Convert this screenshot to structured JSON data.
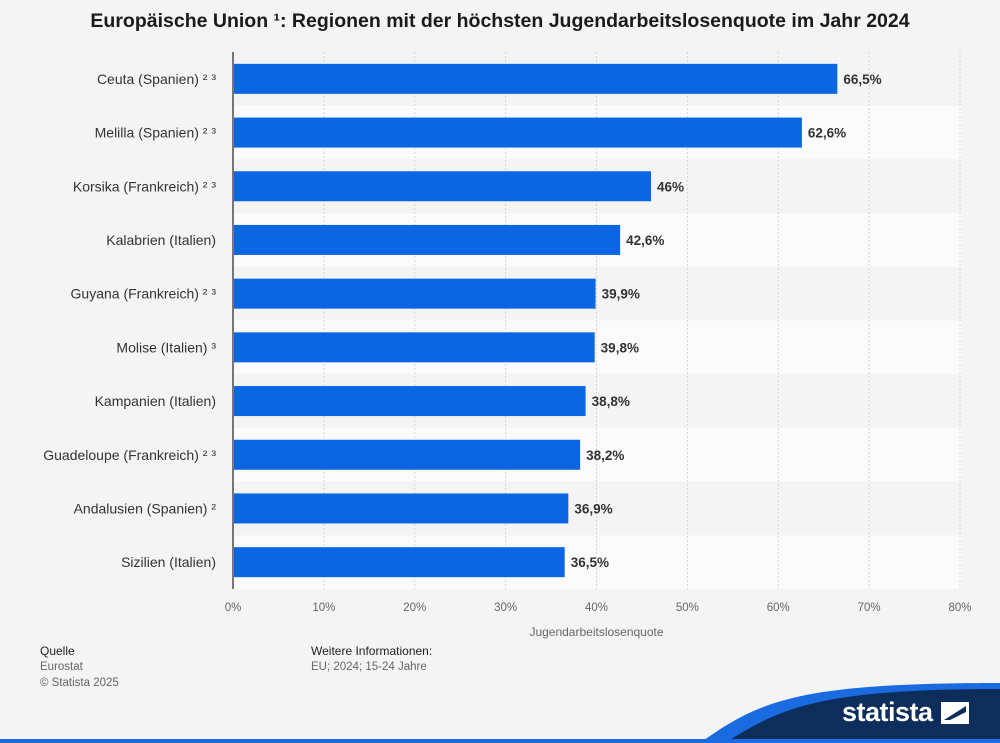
{
  "chart_data": {
    "type": "bar",
    "orientation": "horizontal",
    "title": "Europäische Union ¹: Regionen mit der höchsten Jugendarbeitslosenquote im Jahr 2024",
    "categories": [
      "Ceuta (Spanien) ² ³",
      "Melilla (Spanien) ² ³",
      "Korsika (Frankreich) ² ³",
      "Kalabrien (Italien)",
      "Guyana (Frankreich) ² ³",
      "Molise (Italien) ³",
      "Kampanien (Italien)",
      "Guadeloupe (Frankreich) ² ³",
      "Andalusien (Spanien) ²",
      "Sizilien (Italien)"
    ],
    "values": [
      66.5,
      62.6,
      46,
      42.6,
      39.9,
      39.8,
      38.8,
      38.2,
      36.9,
      36.5
    ],
    "value_labels": [
      "66,5%",
      "62,6%",
      "46%",
      "42,6%",
      "39,9%",
      "39,8%",
      "38,8%",
      "38,2%",
      "36,9%",
      "36,5%"
    ],
    "xlabel": "Jugendarbeitslosenquote",
    "ylabel": "",
    "xlim": [
      0,
      80
    ],
    "ticks": [
      0,
      10,
      20,
      30,
      40,
      50,
      60,
      70,
      80
    ],
    "tick_labels": [
      "0%",
      "10%",
      "20%",
      "30%",
      "40%",
      "50%",
      "60%",
      "70%",
      "80%"
    ],
    "bar_color": "#0b66e4",
    "grid": true
  },
  "footer": {
    "source_label": "Quelle",
    "source": "Eurostat",
    "copyright": "© Statista 2025",
    "info_label": "Weitere Informationen:",
    "info": "EU; 2024; 15-24 Jahre"
  },
  "logo": {
    "text": "statista",
    "colors": {
      "dark": "#0d2d5b",
      "blue": "#1a6ae0"
    }
  }
}
